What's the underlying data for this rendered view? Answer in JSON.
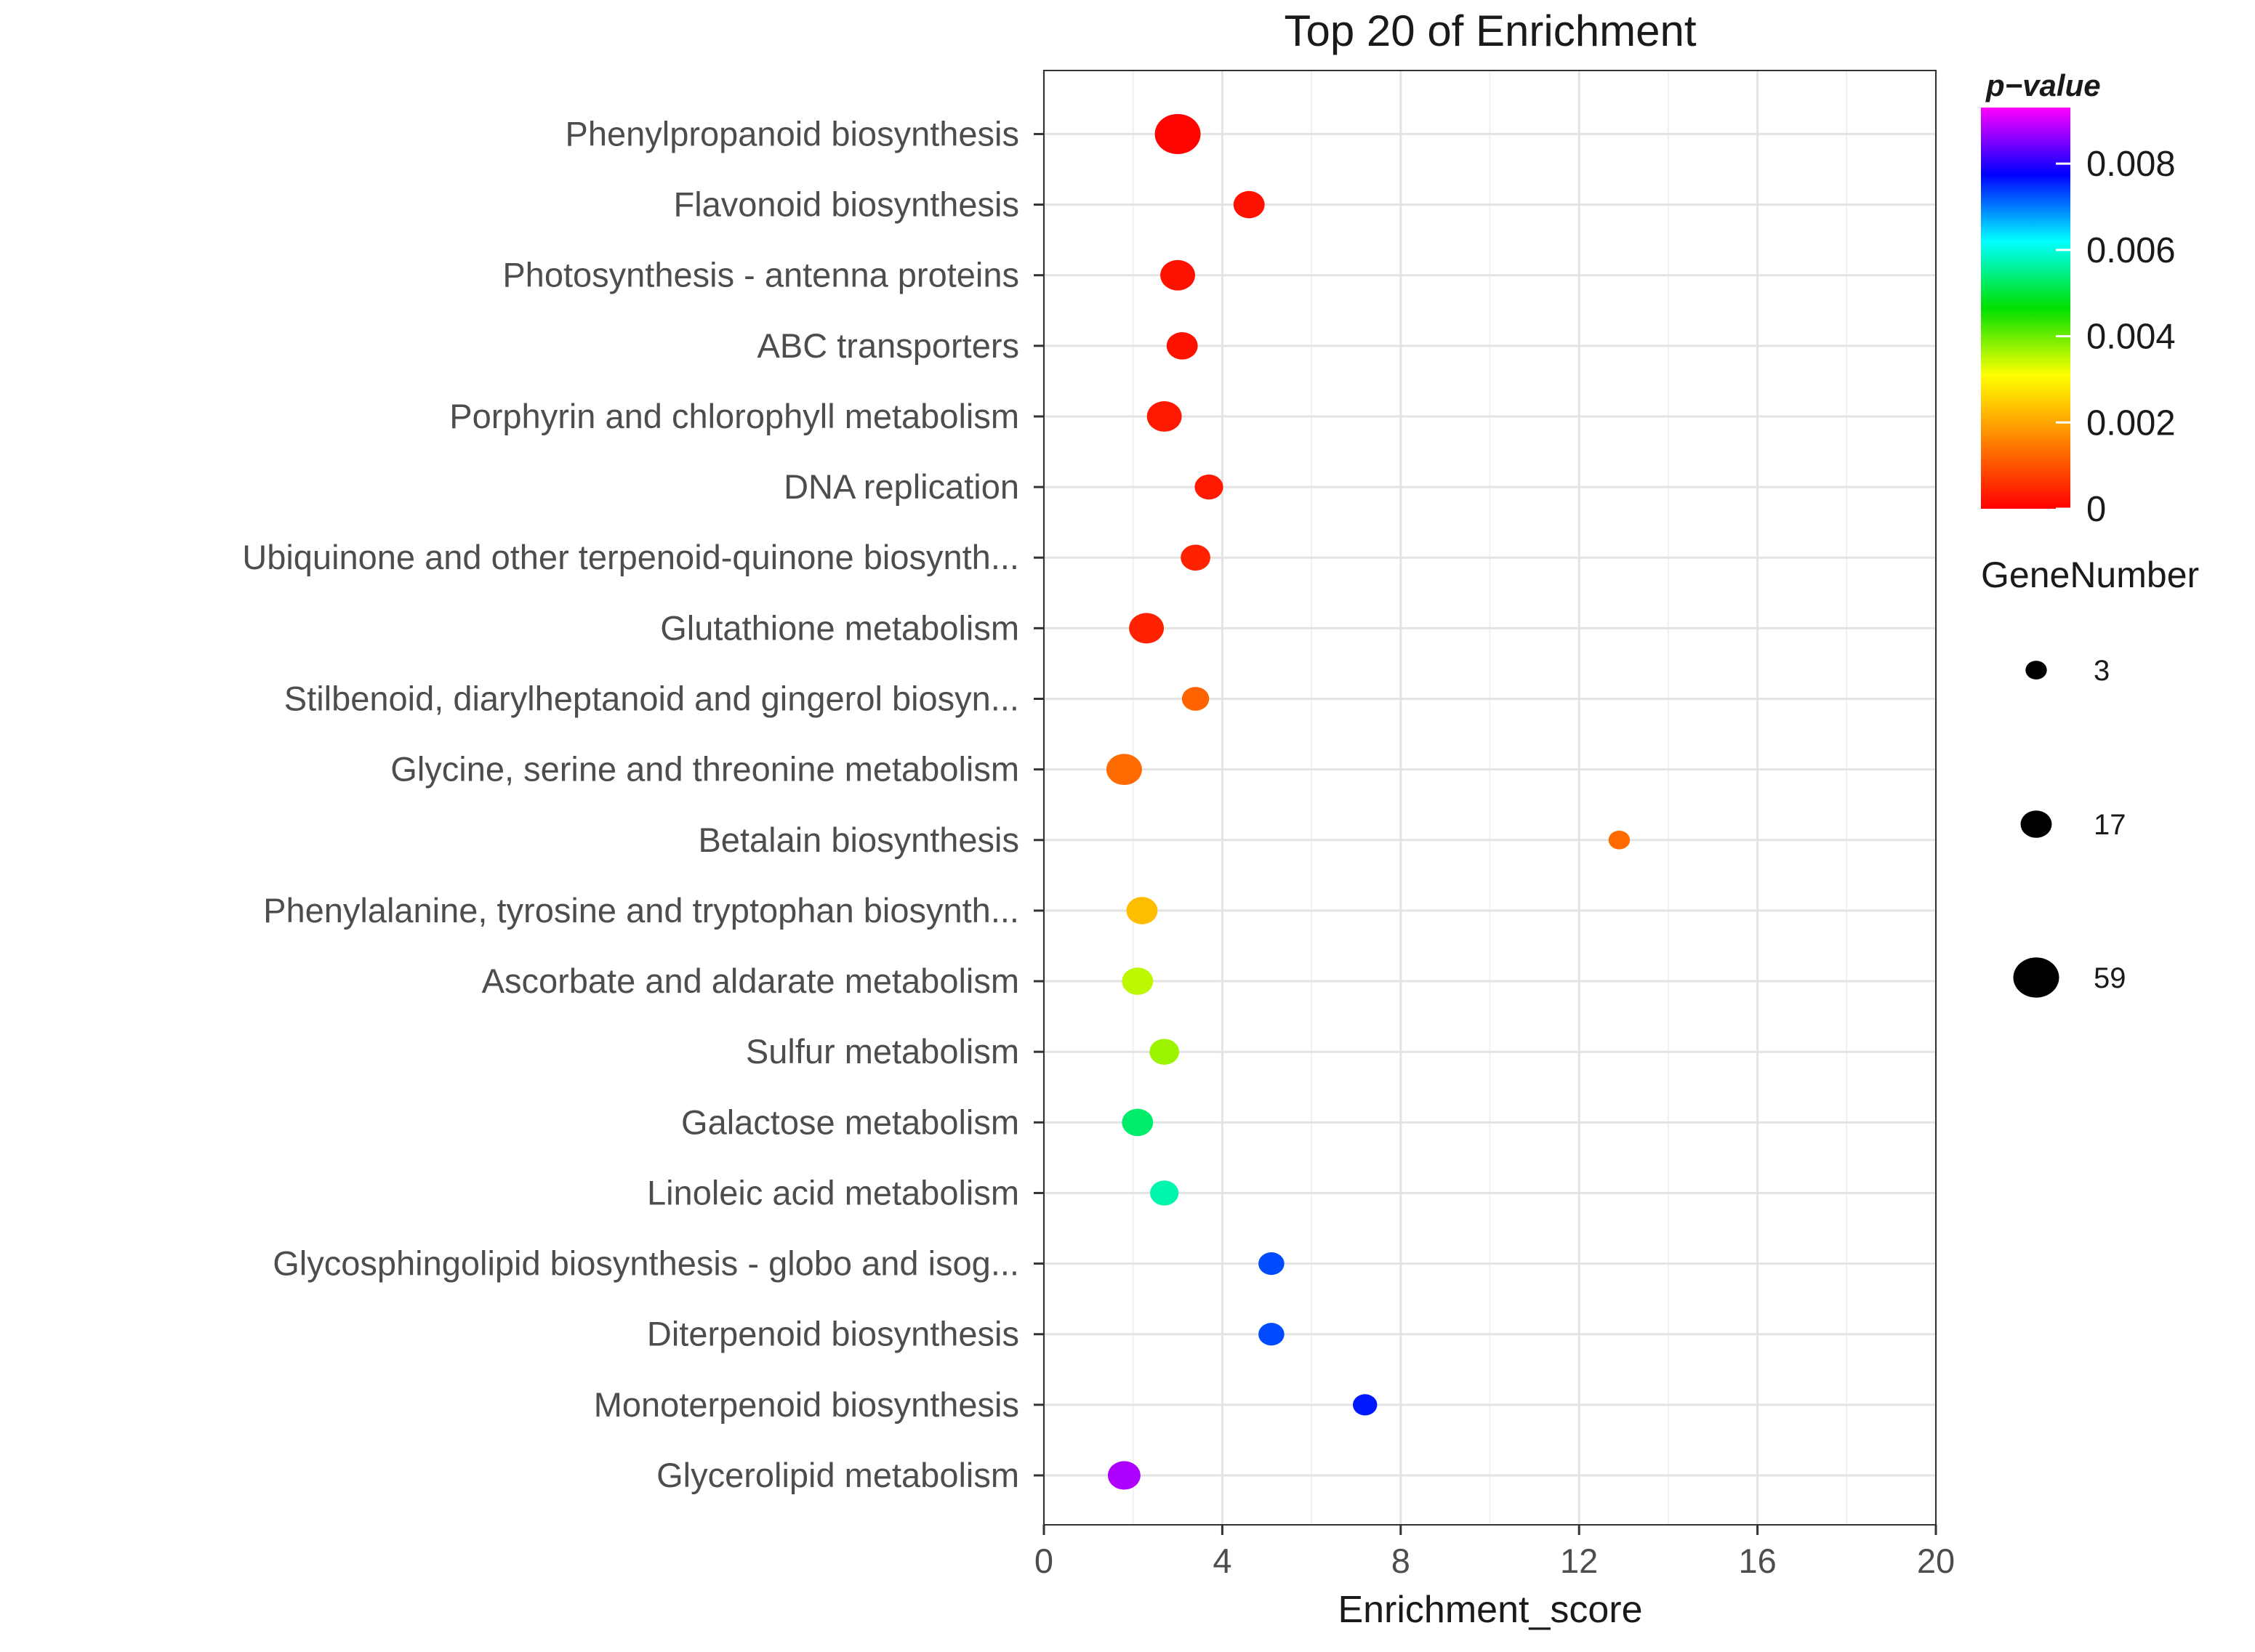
{
  "chart_data": {
    "type": "scatter",
    "title": "Top 20 of  Enrichment",
    "xlabel": "Enrichment_score",
    "ylabel": "",
    "xlim": [
      0,
      20
    ],
    "x_ticks": [
      "0",
      "4",
      "8",
      "12",
      "16",
      "20"
    ],
    "grid": true,
    "categories": [
      "Phenylpropanoid biosynthesis",
      "Flavonoid biosynthesis",
      "Photosynthesis - antenna proteins",
      "ABC transporters",
      "Porphyrin and chlorophyll metabolism",
      "DNA replication",
      "Ubiquinone and other terpenoid-quinone biosynth...",
      "Glutathione metabolism",
      "Stilbenoid, diarylheptanoid and gingerol biosyn...",
      "Glycine, serine and threonine metabolism",
      "Betalain biosynthesis",
      "Phenylalanine, tyrosine and tryptophan biosynth...",
      "Ascorbate and aldarate metabolism",
      "Sulfur metabolism",
      "Galactose metabolism",
      "Linoleic acid metabolism",
      "Glycosphingolipid biosynthesis - globo and isog...",
      "Diterpenoid biosynthesis",
      "Monoterpenoid biosynthesis",
      "Glycerolipid metabolism"
    ],
    "enrichment_score": [
      3.0,
      4.6,
      3.0,
      3.1,
      2.7,
      3.7,
      3.4,
      2.3,
      3.4,
      1.8,
      12.9,
      2.2,
      2.1,
      2.7,
      2.1,
      2.7,
      5.1,
      5.1,
      7.2,
      1.8
    ],
    "p_value": [
      5e-05,
      0.0002,
      0.0002,
      0.0002,
      0.0003,
      0.0003,
      0.0004,
      0.0004,
      0.0012,
      0.0013,
      0.0013,
      0.0023,
      0.0035,
      0.0037,
      0.0053,
      0.0057,
      0.0073,
      0.0073,
      0.0076,
      0.0088
    ],
    "gene_number": [
      59,
      17,
      25,
      17,
      25,
      12,
      14,
      25,
      10,
      27,
      3,
      17,
      17,
      14,
      17,
      12,
      8,
      8,
      6,
      20
    ],
    "color_legend": {
      "title": "p−value",
      "ticks": [
        "0.008",
        "0.006",
        "0.004",
        "0.002",
        "0"
      ],
      "tick_values": [
        0.008,
        0.006,
        0.004,
        0.002,
        0
      ],
      "range": [
        0,
        0.0093
      ],
      "gradient_colors": [
        "#ff0000",
        "#ff8000",
        "#ffff00",
        "#00e000",
        "#00ffff",
        "#0000ff",
        "#ff00ff"
      ]
    },
    "size_legend": {
      "title": "GeneNumber",
      "labels": [
        "3",
        "17",
        "59"
      ],
      "values": [
        3,
        17,
        59
      ]
    }
  }
}
